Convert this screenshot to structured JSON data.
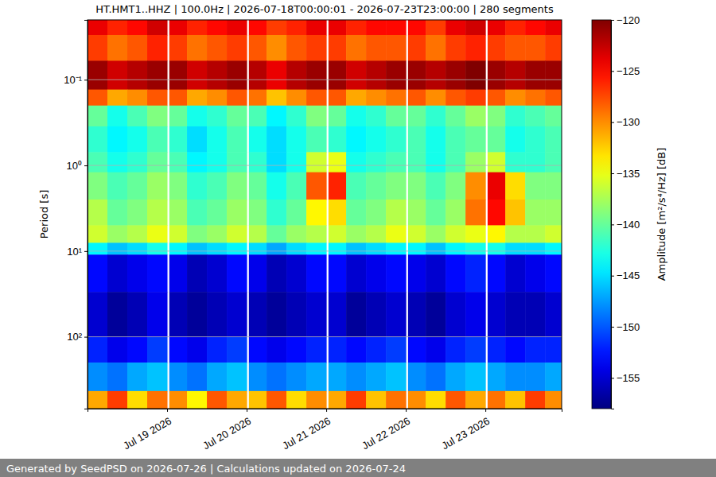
{
  "chart_data": {
    "type": "heatmap",
    "title": "HT.HMT1..HHZ | 100.0Hz | 2026-07-18T00:00:01 - 2026-07-23T23:00:00 | 280 segments",
    "ylabel": "Period [s]",
    "colorbar_label": "Amplitude [m²/s⁴/Hz] [dB]",
    "log": "y",
    "grid": true,
    "xlim": [
      "2026-07-18T00:00:01",
      "2026-07-23T23:00:00"
    ],
    "xticks": [
      {
        "value": "2026-07-19T00:00",
        "label": "Jul 19 2026"
      },
      {
        "value": "2026-07-20T00:00",
        "label": "Jul 20 2026"
      },
      {
        "value": "2026-07-21T00:00",
        "label": "Jul 21 2026"
      },
      {
        "value": "2026-07-22T00:00",
        "label": "Jul 22 2026"
      },
      {
        "value": "2026-07-23T00:00",
        "label": "Jul 23 2026"
      }
    ],
    "ylim": [
      0.02,
      690
    ],
    "yticks": [
      {
        "value": 0.1,
        "label": "10⁻¹"
      },
      {
        "value": 1,
        "label": "10⁰"
      },
      {
        "value": 10,
        "label": "10¹"
      },
      {
        "value": 100,
        "label": "10²"
      }
    ],
    "zlim": [
      -158,
      -120
    ],
    "zticks": [
      {
        "value": -155,
        "label": "−155"
      },
      {
        "value": -150,
        "label": "−150"
      },
      {
        "value": -145,
        "label": "−145"
      },
      {
        "value": -140,
        "label": "−140"
      },
      {
        "value": -135,
        "label": "−135"
      },
      {
        "value": -130,
        "label": "−130"
      },
      {
        "value": -125,
        "label": "−125"
      },
      {
        "value": -120,
        "label": "−120"
      }
    ],
    "x_bins": [
      "2026-07-18T00:00:01",
      "2026-07-18T06:00",
      "2026-07-18T12:00",
      "2026-07-18T18:00",
      "2026-07-19T00:00",
      "2026-07-19T00:40",
      "2026-07-19T06:00",
      "2026-07-19T12:00",
      "2026-07-19T18:00",
      "2026-07-20T00:00",
      "2026-07-20T00:40",
      "2026-07-20T06:00",
      "2026-07-20T12:00",
      "2026-07-20T18:00",
      "2026-07-21T00:00",
      "2026-07-21T00:40",
      "2026-07-21T06:00",
      "2026-07-21T12:00",
      "2026-07-21T18:00",
      "2026-07-22T00:00",
      "2026-07-22T00:40",
      "2026-07-22T06:00",
      "2026-07-22T12:00",
      "2026-07-22T18:00",
      "2026-07-23T00:00",
      "2026-07-23T00:40",
      "2026-07-23T06:00",
      "2026-07-23T12:00",
      "2026-07-23T18:00",
      "2026-07-23T23:00:00"
    ],
    "y_bins": [
      0.02,
      0.03,
      0.06,
      0.13,
      0.2,
      0.35,
      0.7,
      1.2,
      2.5,
      5,
      8,
      11,
      30,
      100,
      200,
      430,
      690
    ],
    "z": [
      [
        -124,
        -126,
        -125,
        -123,
        null,
        -124,
        -126,
        -125,
        -124,
        null,
        -125,
        -127,
        -126,
        -124,
        null,
        -124,
        -126,
        -125,
        -125,
        null,
        -125,
        -127,
        -124,
        -123,
        null,
        -124,
        -126,
        -125,
        -124
      ],
      [
        -127,
        -129,
        -128,
        -126,
        null,
        -127,
        -129,
        -128,
        -127,
        null,
        -128,
        -130,
        -128,
        -127,
        null,
        -127,
        -129,
        -128,
        -128,
        null,
        -127,
        -129,
        -127,
        -126,
        null,
        -127,
        -128,
        -128,
        -127
      ],
      [
        -121,
        -123,
        -122,
        -121,
        null,
        -121,
        -123,
        -122,
        -121,
        null,
        -122,
        -124,
        -122,
        -121,
        null,
        -121,
        -123,
        -122,
        -121,
        null,
        -121,
        -122,
        -121,
        -120,
        null,
        -121,
        -122,
        -121,
        -121
      ],
      [
        -128,
        -131,
        -130,
        -128,
        null,
        -128,
        -131,
        -130,
        -128,
        null,
        -129,
        -132,
        -130,
        -128,
        null,
        -128,
        -131,
        -130,
        -129,
        null,
        -128,
        -130,
        -128,
        -127,
        null,
        -128,
        -130,
        -129,
        -128
      ],
      [
        -140,
        -143,
        -141,
        -139,
        null,
        -140,
        -143,
        -142,
        -140,
        null,
        -141,
        -144,
        -142,
        -139,
        null,
        -140,
        -143,
        -142,
        -140,
        null,
        -140,
        -142,
        -140,
        -138,
        null,
        -139,
        -142,
        -141,
        -140
      ],
      [
        -142,
        -144,
        -143,
        -141,
        null,
        -142,
        -145,
        -143,
        -141,
        null,
        -143,
        -145,
        -143,
        -141,
        null,
        -142,
        -144,
        -143,
        -142,
        null,
        -141,
        -143,
        -141,
        -140,
        null,
        -140,
        -143,
        -142,
        -141
      ],
      [
        -141,
        -143,
        -142,
        -140,
        null,
        -141,
        -144,
        -143,
        -141,
        null,
        -142,
        -145,
        -143,
        -136,
        null,
        -135,
        -143,
        -142,
        -141,
        null,
        -141,
        -143,
        -141,
        -138,
        null,
        -136,
        -142,
        -142,
        -141
      ],
      [
        -139,
        -141,
        -140,
        -138,
        null,
        -139,
        -142,
        -141,
        -139,
        null,
        -140,
        -143,
        -141,
        -128,
        null,
        -126,
        -141,
        -140,
        -139,
        null,
        -139,
        -141,
        -139,
        -130,
        null,
        -124,
        -133,
        -139,
        -139
      ],
      [
        -137,
        -140,
        -139,
        -137,
        null,
        -138,
        -141,
        -140,
        -138,
        null,
        -139,
        -142,
        -140,
        -134,
        null,
        -133,
        -140,
        -139,
        -137,
        null,
        -138,
        -140,
        -138,
        -129,
        null,
        -125,
        -132,
        -138,
        -138
      ],
      [
        -136,
        -138,
        -137,
        -135,
        null,
        -136,
        -139,
        -138,
        -136,
        null,
        -137,
        -140,
        -138,
        -137,
        null,
        -136,
        -138,
        -137,
        -135,
        null,
        -136,
        -138,
        -136,
        -135,
        null,
        -134,
        -137,
        -137,
        -136
      ],
      [
        -144,
        -146,
        -145,
        -143,
        null,
        -144,
        -146,
        -145,
        -144,
        null,
        -145,
        -147,
        -145,
        -144,
        null,
        -144,
        -146,
        -145,
        -144,
        null,
        -144,
        -146,
        -144,
        -143,
        null,
        -143,
        -145,
        -145,
        -144
      ],
      [
        -153,
        -155,
        -154,
        -153,
        null,
        -154,
        -156,
        -155,
        -153,
        null,
        -154,
        -156,
        -155,
        -153,
        null,
        -153,
        -155,
        -154,
        -153,
        null,
        -154,
        -155,
        -153,
        -152,
        null,
        -153,
        -155,
        -154,
        -153
      ],
      [
        -155,
        -157,
        -156,
        -154,
        null,
        -156,
        -157,
        -156,
        -155,
        null,
        -156,
        -157,
        -156,
        -155,
        null,
        -155,
        -157,
        -156,
        -155,
        null,
        -156,
        -157,
        -155,
        -154,
        null,
        -155,
        -156,
        -156,
        -155
      ],
      [
        -152,
        -154,
        -153,
        -151,
        null,
        -153,
        -154,
        -152,
        -151,
        null,
        -153,
        -154,
        -153,
        -152,
        null,
        -152,
        -153,
        -152,
        -151,
        null,
        -153,
        -154,
        -152,
        -151,
        null,
        -152,
        -153,
        -152,
        -152
      ],
      [
        -148,
        -149,
        -147,
        -146,
        null,
        -148,
        -149,
        -147,
        -146,
        null,
        -148,
        -149,
        -148,
        -147,
        null,
        -147,
        -148,
        -147,
        -146,
        null,
        -148,
        -149,
        -147,
        -146,
        null,
        -147,
        -148,
        -148,
        -147
      ],
      [
        -131,
        -127,
        -133,
        -129,
        null,
        -130,
        -134,
        -128,
        -131,
        null,
        -132,
        -128,
        -133,
        -130,
        null,
        -131,
        -127,
        -132,
        -129,
        null,
        -130,
        -133,
        -128,
        -131,
        null,
        -129,
        -132,
        -127,
        -130
      ]
    ]
  },
  "footer": "Generated by SeedPSD on 2026-07-26 | Calculations updated on 2026-07-24"
}
